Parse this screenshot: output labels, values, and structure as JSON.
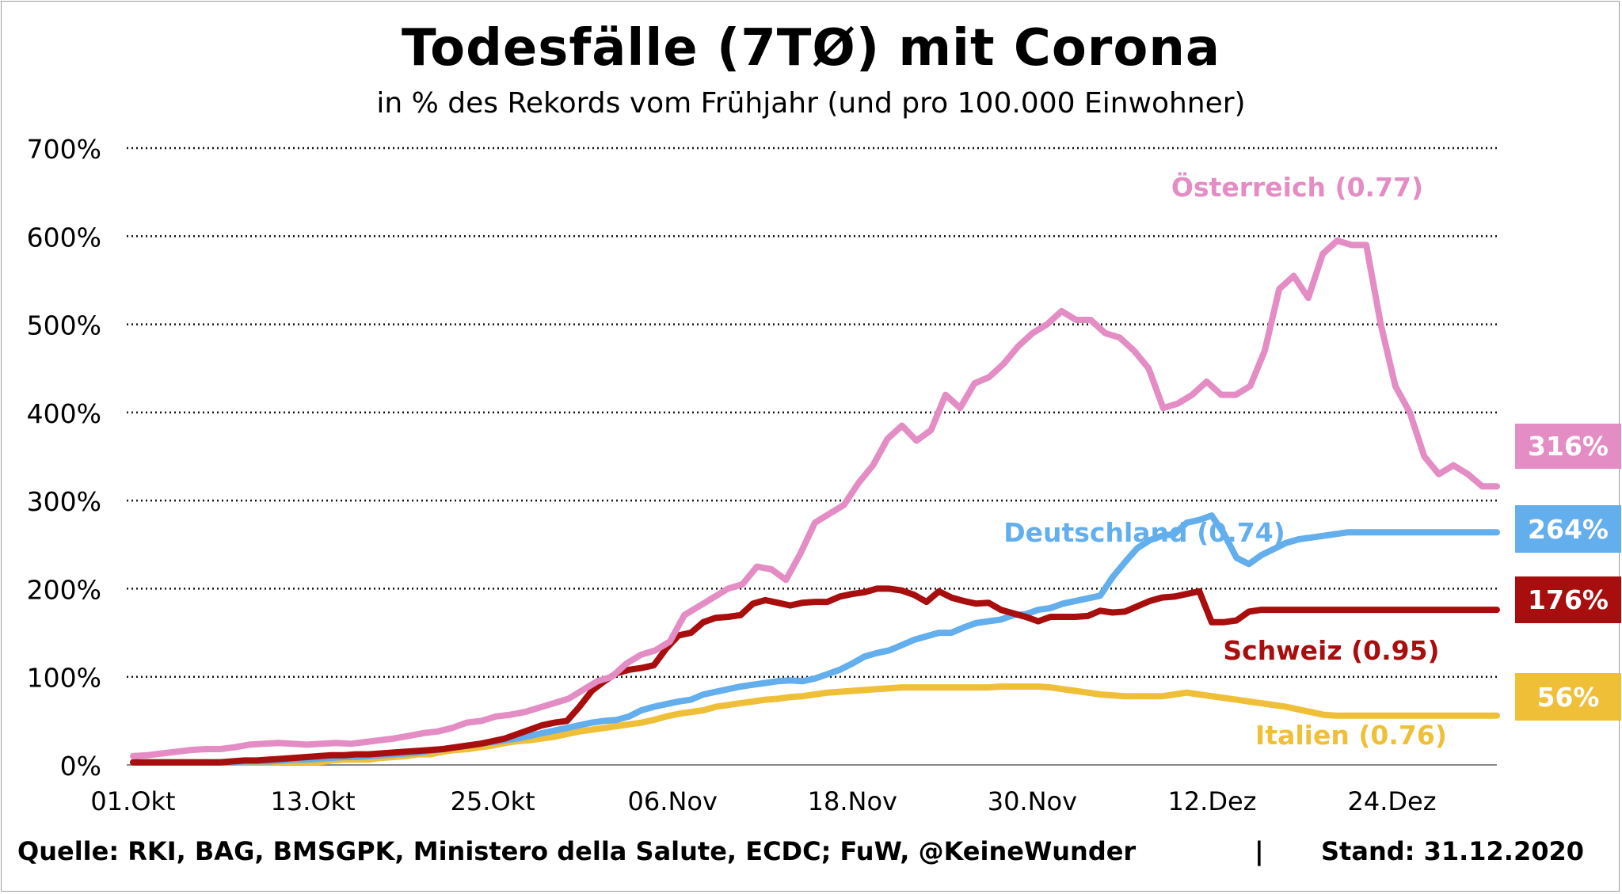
{
  "chart_data": {
    "type": "line",
    "title": "Todesfälle (7TØ) mit Corona",
    "subtitle": "in % des Rekords vom Frühjahr (und pro 100.000 Einwohner)",
    "ylim": [
      0,
      700
    ],
    "y_ticks": [
      0,
      100,
      200,
      300,
      400,
      500,
      600,
      700
    ],
    "y_tick_labels": [
      "0%",
      "100%",
      "200%",
      "300%",
      "400%",
      "500%",
      "600%",
      "700%"
    ],
    "x_tick_labels": [
      "01.Okt",
      "13.Okt",
      "25.Okt",
      "06.Nov",
      "18.Nov",
      "30.Nov",
      "12.Dez",
      "24.Dez"
    ],
    "x_tick_days": [
      0,
      12,
      24,
      36,
      48,
      60,
      72,
      84
    ],
    "x_range_days": [
      0,
      91
    ],
    "grid": "horizontal-dotted",
    "series": [
      {
        "name": "Italien (0.76)",
        "color": "#f0bf38",
        "end_label": "56%",
        "values": [
          3,
          3,
          3,
          3,
          3,
          3,
          3,
          3,
          3,
          3,
          3,
          3,
          3,
          3,
          3,
          3,
          5,
          6,
          6,
          6,
          8,
          9,
          10,
          12,
          12,
          15,
          17,
          18,
          20,
          22,
          25,
          27,
          28,
          30,
          32,
          35,
          38,
          40,
          42,
          44,
          46,
          48,
          51,
          55,
          58,
          60,
          62,
          66,
          68,
          70,
          72,
          74,
          75,
          77,
          78,
          80,
          82,
          83,
          84,
          85,
          86,
          87,
          88,
          88,
          88,
          88,
          88,
          88,
          88,
          88,
          89,
          89,
          89,
          89,
          88,
          86,
          84,
          82,
          80,
          79,
          78,
          78,
          78,
          78,
          80,
          82,
          80,
          78,
          76,
          74,
          72,
          70,
          68,
          66,
          63,
          60,
          57,
          56,
          56,
          56,
          56,
          56,
          56,
          56,
          56,
          56,
          56,
          56,
          56,
          56,
          56
        ]
      },
      {
        "name": "Deutschland (0.74)",
        "color": "#63aeed",
        "end_label": "264%",
        "values": [
          3,
          3,
          3,
          3,
          3,
          3,
          3,
          3,
          3,
          4,
          4,
          4,
          5,
          6,
          6,
          7,
          8,
          9,
          9,
          10,
          11,
          12,
          13,
          14,
          16,
          18,
          20,
          22,
          24,
          26,
          28,
          30,
          33,
          36,
          39,
          42,
          45,
          48,
          50,
          51,
          55,
          62,
          66,
          69,
          72,
          74,
          80,
          83,
          86,
          89,
          91,
          93,
          95,
          96,
          95,
          98,
          103,
          108,
          115,
          123,
          127,
          130,
          136,
          142,
          146,
          150,
          150,
          156,
          161,
          163,
          165,
          170,
          171,
          176,
          178,
          183,
          186,
          189,
          192,
          213,
          230,
          246,
          255,
          260,
          262,
          275,
          278,
          283,
          262,
          235,
          228,
          238,
          245,
          252,
          256,
          258,
          260,
          262,
          264,
          264,
          264,
          264,
          264,
          264,
          264,
          264,
          264,
          264,
          264,
          264,
          264
        ]
      },
      {
        "name": "Schweiz (0.95)",
        "color": "#a80e0e",
        "end_label": "176%",
        "values": [
          3,
          3,
          3,
          3,
          3,
          3,
          3,
          3,
          4,
          5,
          5,
          6,
          7,
          8,
          9,
          10,
          11,
          11,
          12,
          12,
          13,
          14,
          15,
          16,
          17,
          18,
          20,
          22,
          24,
          27,
          30,
          35,
          40,
          45,
          48,
          50,
          66,
          84,
          95,
          104,
          108,
          110,
          113,
          132,
          147,
          150,
          162,
          167,
          168,
          170,
          183,
          187,
          184,
          181,
          184,
          185,
          185,
          191,
          194,
          196,
          200,
          200,
          198,
          193,
          185,
          197,
          190,
          186,
          183,
          184,
          176,
          172,
          168,
          163,
          168,
          168,
          168,
          169,
          175,
          173,
          174,
          180,
          186,
          190,
          191,
          194,
          197,
          162,
          162,
          164,
          174,
          176,
          176,
          176,
          176,
          176,
          176,
          176,
          176,
          176,
          176,
          176,
          176,
          176,
          176,
          176,
          176,
          176,
          176,
          176,
          176
        ]
      },
      {
        "name": "Österreich (0.77)",
        "color": "#e48cc4",
        "end_label": "316%",
        "values": [
          10,
          11,
          13,
          15,
          17,
          18,
          18,
          20,
          23,
          24,
          25,
          24,
          23,
          24,
          25,
          24,
          26,
          28,
          30,
          33,
          36,
          38,
          42,
          48,
          50,
          55,
          57,
          60,
          65,
          70,
          75,
          85,
          95,
          100,
          115,
          125,
          130,
          140,
          170,
          180,
          190,
          200,
          205,
          225,
          222,
          210,
          240,
          275,
          285,
          295,
          320,
          340,
          370,
          385,
          368,
          380,
          420,
          405,
          433,
          440,
          455,
          475,
          490,
          500,
          515,
          505,
          505,
          490,
          485,
          470,
          450,
          405,
          410,
          420,
          435,
          420,
          420,
          430,
          470,
          540,
          555,
          530,
          580,
          595,
          590,
          590,
          500,
          430,
          400,
          350,
          330,
          340,
          330,
          316,
          316
        ]
      }
    ]
  },
  "labels": {
    "oesterreich": "Österreich (0.77)",
    "deutschland": "Deutschland (0.74)",
    "schweiz": "Schweiz (0.95)",
    "italien": "Italien (0.76)"
  },
  "badges": {
    "oesterreich": "316%",
    "deutschland": "264%",
    "schweiz": "176%",
    "italien": "56%"
  },
  "footer": {
    "source": "Quelle: RKI, BAG, BMSGPK, Ministero della Salute, ECDC; FuW, @KeineWunder",
    "separator": "|",
    "stand": "Stand: 31.12.2020"
  }
}
